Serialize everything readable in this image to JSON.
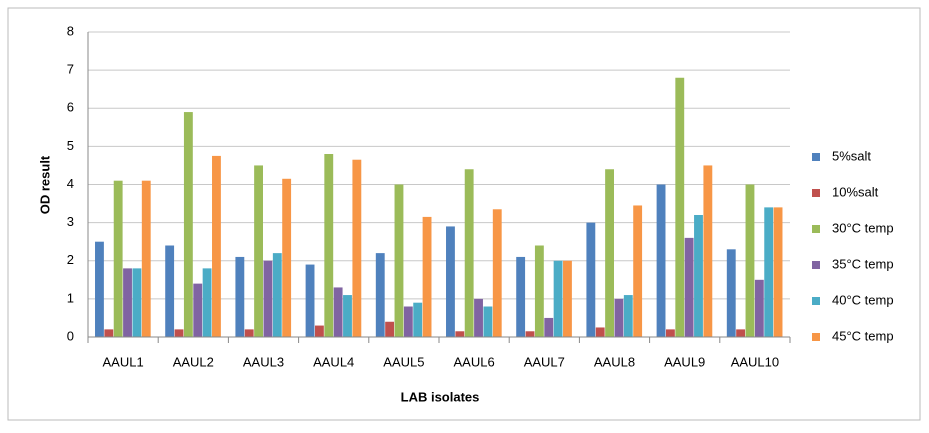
{
  "chart_data": {
    "type": "bar",
    "x_label": "LAB isolates",
    "y_label": "OD result",
    "categories": [
      "AAUL1",
      "AAUL2",
      "AAUL3",
      "AAUL4",
      "AAUL5",
      "AAUL6",
      "AAUL7",
      "AAUL8",
      "AAUL9",
      "AAUL10"
    ],
    "series": [
      {
        "name": "5%salt",
        "color": "#4f81bd",
        "values": [
          2.5,
          2.4,
          2.1,
          1.9,
          2.2,
          2.9,
          2.1,
          3.0,
          4.0,
          2.3
        ]
      },
      {
        "name": "10%salt",
        "color": "#c0504d",
        "values": [
          0.2,
          0.2,
          0.2,
          0.3,
          0.4,
          0.15,
          0.15,
          0.25,
          0.2,
          0.2
        ]
      },
      {
        "name": "30°C temp",
        "color": "#9bbb59",
        "values": [
          4.1,
          5.9,
          4.5,
          4.8,
          4.0,
          4.4,
          2.4,
          4.4,
          6.8,
          4.0
        ]
      },
      {
        "name": "35°C temp",
        "color": "#8064a2",
        "values": [
          1.8,
          1.4,
          2.0,
          1.3,
          0.8,
          1.0,
          0.5,
          1.0,
          2.6,
          1.5
        ]
      },
      {
        "name": "40°C temp",
        "color": "#4bacc6",
        "values": [
          1.8,
          1.8,
          2.2,
          1.1,
          0.9,
          0.8,
          2.0,
          1.1,
          3.2,
          3.4
        ]
      },
      {
        "name": "45°C temp",
        "color": "#f79646",
        "values": [
          4.1,
          4.75,
          4.15,
          4.65,
          3.15,
          3.35,
          2.0,
          3.45,
          4.5,
          3.4
        ]
      }
    ],
    "ylim": [
      0,
      8
    ],
    "yticks": [
      0,
      1,
      2,
      3,
      4,
      5,
      6,
      7,
      8
    ],
    "grid": true,
    "legend": "right"
  }
}
